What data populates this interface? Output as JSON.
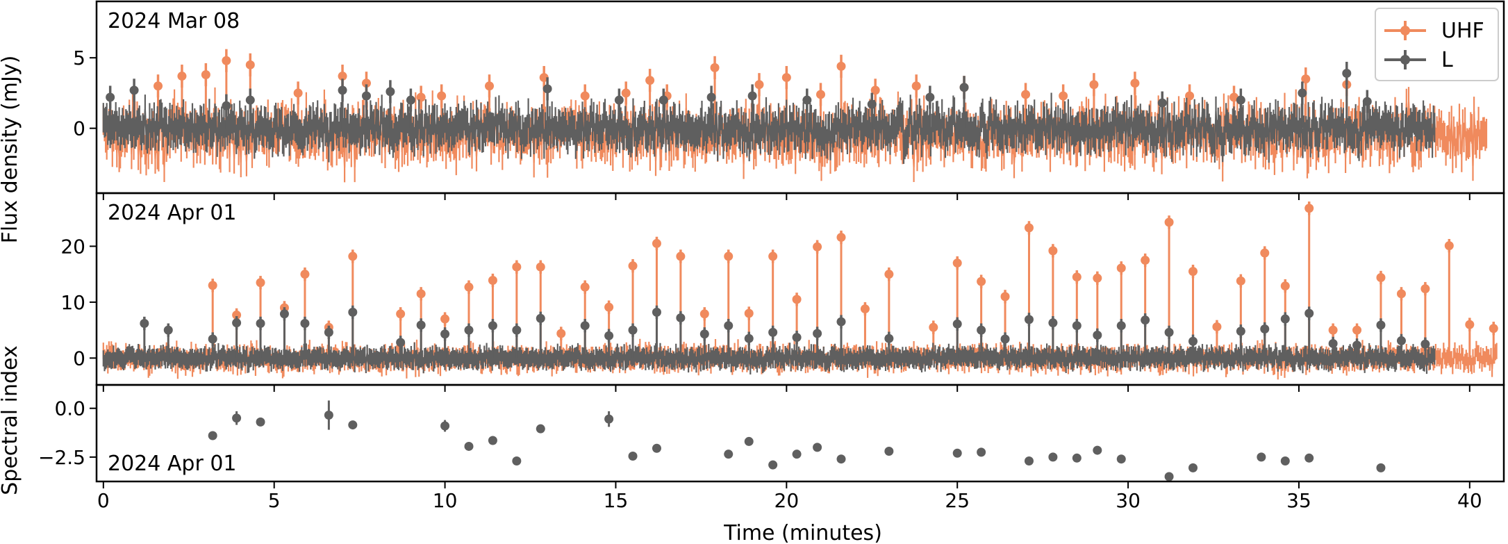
{
  "chart_data": [
    {
      "type": "scatter",
      "panel": "top",
      "panel_label": "2024 Mar 08",
      "xlim": [
        -0.2,
        41.0
      ],
      "ylim": [
        -4.6,
        9.0
      ],
      "yticks": [
        0,
        5
      ],
      "ylabel": "Flux density (mJy)",
      "legend": {
        "placement": "top-right",
        "entries": [
          "UHF",
          "L"
        ]
      },
      "series": [
        {
          "name": "UHF",
          "color": "#f08a5d",
          "style": "points-with-errorbars",
          "approx_cadence_s": 2,
          "noise_band": [
            -2.5,
            1.5
          ],
          "peaks": [
            {
              "x": 1.6,
              "y": 3.0
            },
            {
              "x": 2.3,
              "y": 3.7
            },
            {
              "x": 3.0,
              "y": 3.8
            },
            {
              "x": 3.6,
              "y": 4.8
            },
            {
              "x": 4.3,
              "y": 4.5
            },
            {
              "x": 5.7,
              "y": 2.5
            },
            {
              "x": 7.0,
              "y": 3.7
            },
            {
              "x": 7.7,
              "y": 3.2
            },
            {
              "x": 9.3,
              "y": 2.2
            },
            {
              "x": 9.9,
              "y": 2.3
            },
            {
              "x": 11.3,
              "y": 3.0
            },
            {
              "x": 12.9,
              "y": 3.6
            },
            {
              "x": 14.1,
              "y": 2.3
            },
            {
              "x": 15.3,
              "y": 2.5
            },
            {
              "x": 16.0,
              "y": 3.4
            },
            {
              "x": 16.5,
              "y": 2.3
            },
            {
              "x": 17.9,
              "y": 4.3
            },
            {
              "x": 19.2,
              "y": 3.1
            },
            {
              "x": 20.0,
              "y": 3.6
            },
            {
              "x": 21.0,
              "y": 2.4
            },
            {
              "x": 21.6,
              "y": 4.4
            },
            {
              "x": 22.6,
              "y": 2.7
            },
            {
              "x": 23.8,
              "y": 3.0
            },
            {
              "x": 25.2,
              "y": 2.9
            },
            {
              "x": 27.0,
              "y": 2.4
            },
            {
              "x": 28.1,
              "y": 2.3
            },
            {
              "x": 29.0,
              "y": 3.1
            },
            {
              "x": 30.2,
              "y": 3.2
            },
            {
              "x": 31.8,
              "y": 2.3
            },
            {
              "x": 33.1,
              "y": 2.2
            },
            {
              "x": 35.2,
              "y": 3.5
            },
            {
              "x": 36.4,
              "y": 3.1
            }
          ]
        },
        {
          "name": "L",
          "color": "#5f5f5f",
          "style": "points-with-errorbars",
          "approx_cadence_s": 2,
          "noise_band": [
            -1.3,
            1.3
          ],
          "peaks": [
            {
              "x": 0.2,
              "y": 2.2
            },
            {
              "x": 0.9,
              "y": 2.7
            },
            {
              "x": 3.6,
              "y": 1.6
            },
            {
              "x": 4.3,
              "y": 2.0
            },
            {
              "x": 7.0,
              "y": 2.7
            },
            {
              "x": 7.7,
              "y": 2.3
            },
            {
              "x": 8.4,
              "y": 2.6
            },
            {
              "x": 9.0,
              "y": 2.0
            },
            {
              "x": 13.0,
              "y": 2.8
            },
            {
              "x": 15.1,
              "y": 2.0
            },
            {
              "x": 16.4,
              "y": 2.0
            },
            {
              "x": 17.8,
              "y": 2.2
            },
            {
              "x": 19.0,
              "y": 2.3
            },
            {
              "x": 20.6,
              "y": 2.0
            },
            {
              "x": 22.5,
              "y": 1.7
            },
            {
              "x": 24.2,
              "y": 2.2
            },
            {
              "x": 25.2,
              "y": 2.9
            },
            {
              "x": 31.0,
              "y": 1.8
            },
            {
              "x": 33.3,
              "y": 2.0
            },
            {
              "x": 35.1,
              "y": 2.5
            },
            {
              "x": 36.4,
              "y": 3.9
            },
            {
              "x": 37.0,
              "y": 1.9
            }
          ]
        }
      ]
    },
    {
      "type": "scatter",
      "panel": "middle",
      "panel_label": "2024 Apr 01",
      "xlim": [
        -0.2,
        41.0
      ],
      "ylim": [
        -4.8,
        29.5
      ],
      "yticks": [
        0,
        10,
        20
      ],
      "series": [
        {
          "name": "UHF",
          "color": "#f08a5d",
          "style": "points-with-errorbars",
          "noise_band": [
            -2.0,
            1.8
          ],
          "peaks": [
            {
              "x": 3.2,
              "y": 13.0
            },
            {
              "x": 3.9,
              "y": 7.7
            },
            {
              "x": 4.6,
              "y": 13.5
            },
            {
              "x": 5.3,
              "y": 9.0
            },
            {
              "x": 5.9,
              "y": 15.0
            },
            {
              "x": 6.6,
              "y": 5.5
            },
            {
              "x": 7.3,
              "y": 18.2
            },
            {
              "x": 8.7,
              "y": 7.9
            },
            {
              "x": 9.3,
              "y": 11.5
            },
            {
              "x": 10.0,
              "y": 7.0
            },
            {
              "x": 10.7,
              "y": 12.7
            },
            {
              "x": 11.4,
              "y": 13.9
            },
            {
              "x": 12.1,
              "y": 16.3
            },
            {
              "x": 12.8,
              "y": 16.3
            },
            {
              "x": 13.4,
              "y": 4.4
            },
            {
              "x": 14.1,
              "y": 12.7
            },
            {
              "x": 14.8,
              "y": 9.1
            },
            {
              "x": 15.5,
              "y": 16.5
            },
            {
              "x": 16.2,
              "y": 20.5
            },
            {
              "x": 16.9,
              "y": 18.2
            },
            {
              "x": 17.6,
              "y": 7.9
            },
            {
              "x": 18.3,
              "y": 18.2
            },
            {
              "x": 18.9,
              "y": 8.0
            },
            {
              "x": 19.6,
              "y": 18.2
            },
            {
              "x": 20.3,
              "y": 10.5
            },
            {
              "x": 20.9,
              "y": 19.9
            },
            {
              "x": 21.6,
              "y": 21.6
            },
            {
              "x": 22.3,
              "y": 8.8
            },
            {
              "x": 23.0,
              "y": 15.0
            },
            {
              "x": 24.3,
              "y": 5.5
            },
            {
              "x": 25.0,
              "y": 17.0
            },
            {
              "x": 25.7,
              "y": 13.7
            },
            {
              "x": 26.4,
              "y": 11.0
            },
            {
              "x": 27.1,
              "y": 23.3
            },
            {
              "x": 27.8,
              "y": 19.2
            },
            {
              "x": 28.5,
              "y": 14.5
            },
            {
              "x": 29.1,
              "y": 14.3
            },
            {
              "x": 29.8,
              "y": 16.1
            },
            {
              "x": 30.5,
              "y": 17.5
            },
            {
              "x": 31.2,
              "y": 24.3
            },
            {
              "x": 31.9,
              "y": 15.5
            },
            {
              "x": 32.6,
              "y": 5.6
            },
            {
              "x": 33.3,
              "y": 13.8
            },
            {
              "x": 34.0,
              "y": 18.8
            },
            {
              "x": 34.6,
              "y": 12.9
            },
            {
              "x": 35.3,
              "y": 26.8
            },
            {
              "x": 36.0,
              "y": 5.0
            },
            {
              "x": 36.7,
              "y": 5.0
            },
            {
              "x": 37.4,
              "y": 14.4
            },
            {
              "x": 38.0,
              "y": 11.5
            },
            {
              "x": 38.7,
              "y": 12.4
            },
            {
              "x": 39.4,
              "y": 20.1
            },
            {
              "x": 40.0,
              "y": 6.0
            },
            {
              "x": 40.7,
              "y": 5.3
            }
          ]
        },
        {
          "name": "L",
          "color": "#5f5f5f",
          "style": "points-with-errorbars",
          "noise_band": [
            -1.2,
            1.2
          ],
          "peaks": [
            {
              "x": 1.2,
              "y": 6.2
            },
            {
              "x": 1.9,
              "y": 5.0
            },
            {
              "x": 3.2,
              "y": 3.4
            },
            {
              "x": 3.9,
              "y": 6.3
            },
            {
              "x": 4.6,
              "y": 6.2
            },
            {
              "x": 5.3,
              "y": 7.9
            },
            {
              "x": 5.9,
              "y": 6.2
            },
            {
              "x": 6.6,
              "y": 4.6
            },
            {
              "x": 7.3,
              "y": 8.2
            },
            {
              "x": 8.7,
              "y": 2.8
            },
            {
              "x": 9.3,
              "y": 5.9
            },
            {
              "x": 10.0,
              "y": 4.3
            },
            {
              "x": 10.7,
              "y": 5.0
            },
            {
              "x": 11.4,
              "y": 5.8
            },
            {
              "x": 12.1,
              "y": 5.0
            },
            {
              "x": 12.8,
              "y": 7.1
            },
            {
              "x": 14.1,
              "y": 5.8
            },
            {
              "x": 14.8,
              "y": 4.0
            },
            {
              "x": 15.5,
              "y": 5.0
            },
            {
              "x": 16.2,
              "y": 8.2
            },
            {
              "x": 16.9,
              "y": 7.2
            },
            {
              "x": 17.6,
              "y": 4.3
            },
            {
              "x": 18.3,
              "y": 5.8
            },
            {
              "x": 18.9,
              "y": 3.5
            },
            {
              "x": 19.6,
              "y": 4.6
            },
            {
              "x": 20.3,
              "y": 3.7
            },
            {
              "x": 20.9,
              "y": 4.4
            },
            {
              "x": 21.6,
              "y": 6.5
            },
            {
              "x": 23.0,
              "y": 3.5
            },
            {
              "x": 25.0,
              "y": 6.1
            },
            {
              "x": 25.7,
              "y": 5.0
            },
            {
              "x": 26.4,
              "y": 3.4
            },
            {
              "x": 27.1,
              "y": 6.9
            },
            {
              "x": 27.8,
              "y": 6.3
            },
            {
              "x": 28.5,
              "y": 5.8
            },
            {
              "x": 29.1,
              "y": 4.1
            },
            {
              "x": 29.8,
              "y": 5.8
            },
            {
              "x": 30.5,
              "y": 6.8
            },
            {
              "x": 31.2,
              "y": 4.6
            },
            {
              "x": 31.9,
              "y": 3.0
            },
            {
              "x": 33.3,
              "y": 4.8
            },
            {
              "x": 34.0,
              "y": 5.2
            },
            {
              "x": 34.6,
              "y": 7.0
            },
            {
              "x": 35.3,
              "y": 8.0
            },
            {
              "x": 36.0,
              "y": 2.6
            },
            {
              "x": 36.7,
              "y": 2.3
            },
            {
              "x": 37.4,
              "y": 5.9
            },
            {
              "x": 38.0,
              "y": 3.1
            },
            {
              "x": 38.7,
              "y": 2.5
            }
          ]
        }
      ]
    },
    {
      "type": "scatter",
      "panel": "bottom",
      "panel_label": "2024 Apr 01",
      "xlim": [
        -0.2,
        41.0
      ],
      "ylim": [
        -3.75,
        1.2
      ],
      "yticks": [
        0.0,
        -2.5
      ],
      "ytick_labels": [
        "0.0",
        "−2.5"
      ],
      "ylabel": "Spectral index",
      "xticks": [
        0,
        5,
        10,
        15,
        20,
        25,
        30,
        35,
        40
      ],
      "xlabel": "Time (minutes)",
      "series": [
        {
          "color": "#5f5f5f",
          "points": [
            {
              "x": 3.2,
              "y": -1.4,
              "err": 0.15
            },
            {
              "x": 3.9,
              "y": -0.5,
              "err": 0.35
            },
            {
              "x": 4.6,
              "y": -0.7,
              "err": 0.22
            },
            {
              "x": 6.6,
              "y": -0.35,
              "err": 0.75
            },
            {
              "x": 7.3,
              "y": -0.85,
              "err": 0.12
            },
            {
              "x": 10.0,
              "y": -0.9,
              "err": 0.3
            },
            {
              "x": 10.7,
              "y": -1.95,
              "err": 0.1
            },
            {
              "x": 11.4,
              "y": -1.65,
              "err": 0.1
            },
            {
              "x": 12.1,
              "y": -2.7,
              "err": 0.1
            },
            {
              "x": 12.8,
              "y": -1.05,
              "err": 0.1
            },
            {
              "x": 14.8,
              "y": -0.55,
              "err": 0.4
            },
            {
              "x": 15.5,
              "y": -2.45,
              "err": 0.1
            },
            {
              "x": 16.2,
              "y": -2.05,
              "err": 0.1
            },
            {
              "x": 18.3,
              "y": -2.35,
              "err": 0.1
            },
            {
              "x": 18.9,
              "y": -1.7,
              "err": 0.1
            },
            {
              "x": 19.6,
              "y": -2.9,
              "err": 0.1
            },
            {
              "x": 20.3,
              "y": -2.35,
              "err": 0.1
            },
            {
              "x": 20.9,
              "y": -2.0,
              "err": 0.1
            },
            {
              "x": 21.6,
              "y": -2.6,
              "err": 0.1
            },
            {
              "x": 23.0,
              "y": -2.2,
              "err": 0.1
            },
            {
              "x": 25.0,
              "y": -2.3,
              "err": 0.1
            },
            {
              "x": 25.7,
              "y": -2.25,
              "err": 0.1
            },
            {
              "x": 27.1,
              "y": -2.7,
              "err": 0.1
            },
            {
              "x": 27.8,
              "y": -2.5,
              "err": 0.1
            },
            {
              "x": 28.5,
              "y": -2.55,
              "err": 0.1
            },
            {
              "x": 29.1,
              "y": -2.15,
              "err": 0.1
            },
            {
              "x": 29.8,
              "y": -2.6,
              "err": 0.1
            },
            {
              "x": 31.2,
              "y": -3.5,
              "err": 0.1
            },
            {
              "x": 31.9,
              "y": -3.05,
              "err": 0.1
            },
            {
              "x": 33.9,
              "y": -2.5,
              "err": 0.1
            },
            {
              "x": 34.6,
              "y": -2.7,
              "err": 0.1
            },
            {
              "x": 35.3,
              "y": -2.55,
              "err": 0.1
            },
            {
              "x": 37.4,
              "y": -3.05,
              "err": 0.1
            }
          ]
        }
      ]
    }
  ]
}
